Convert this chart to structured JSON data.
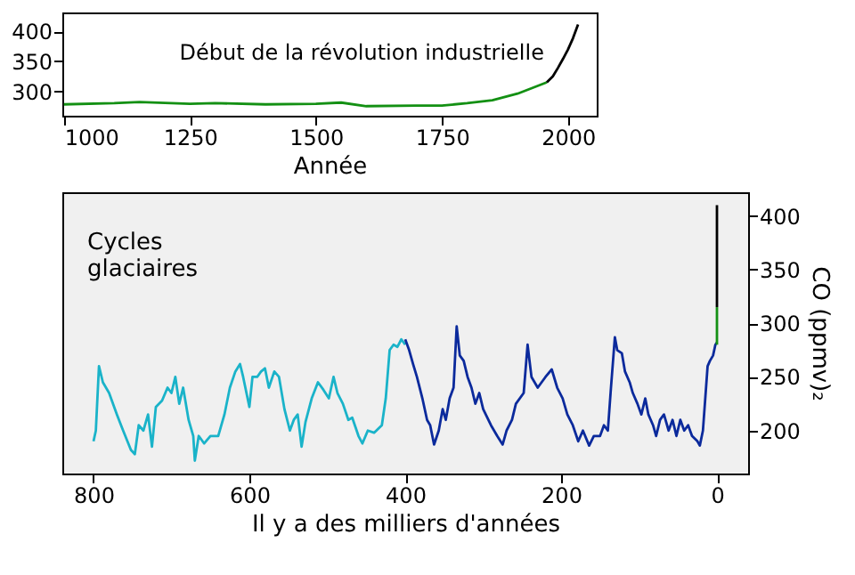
{
  "chart_data": [
    {
      "type": "line",
      "xlabel": "Année",
      "xlim": [
        997,
        2057
      ],
      "ylim": [
        259,
        432
      ],
      "xticks": [
        1000,
        1250,
        1500,
        1750,
        2000
      ],
      "yticks": [
        300,
        350,
        400
      ],
      "grid": false,
      "line_style": "solid",
      "marker": "none",
      "annotations": [
        {
          "text": "Début de la révolution industrielle",
          "x": 1750,
          "y": 276
        }
      ],
      "series": [
        {
          "color": "#139013",
          "x": [
            1000,
            1100,
            1150,
            1250,
            1300,
            1400,
            1500,
            1550,
            1600,
            1700,
            1750,
            1800,
            1850,
            1900,
            1958
          ],
          "values": [
            278,
            280,
            282,
            279,
            280,
            278,
            279,
            281,
            275,
            276,
            276,
            280,
            285,
            296,
            315
          ]
        },
        {
          "color": "#000000",
          "x": [
            1958,
            1970,
            1980,
            1990,
            2000,
            2010,
            2020
          ],
          "values": [
            315,
            325,
            339,
            354,
            370,
            389,
            412
          ]
        }
      ]
    },
    {
      "type": "line",
      "xlabel": "Il y a des milliers d'années",
      "ylabel": "CO (ppmv)₂",
      "xlim": [
        840,
        -40
      ],
      "ylim": [
        160,
        422
      ],
      "xticks": [
        800,
        600,
        400,
        200,
        0
      ],
      "yticks": [
        200,
        250,
        300,
        350,
        400
      ],
      "grid": false,
      "line_style": "solid",
      "marker": "none",
      "annotations": [
        "Cycles\nglaciaires"
      ],
      "series": [
        {
          "color": "#1ab3c9",
          "x": [
            800,
            797,
            793,
            788,
            780,
            770,
            762,
            752,
            747,
            742,
            736,
            730,
            725,
            720,
            712,
            705,
            700,
            695,
            690,
            685,
            678,
            672,
            670,
            665,
            658,
            650,
            640,
            632,
            625,
            618,
            612,
            608,
            600,
            596,
            590,
            585,
            580,
            575,
            568,
            562,
            555,
            548,
            543,
            538,
            533,
            528,
            520,
            512,
            505,
            498,
            492,
            487,
            480,
            473,
            468,
            460,
            455,
            448,
            440,
            430,
            425,
            420,
            415,
            410,
            405,
            400
          ],
          "values": [
            190,
            200,
            260,
            245,
            235,
            215,
            200,
            182,
            178,
            205,
            200,
            215,
            185,
            222,
            228,
            240,
            235,
            250,
            225,
            240,
            210,
            195,
            172,
            195,
            188,
            195,
            195,
            215,
            240,
            255,
            262,
            250,
            222,
            250,
            250,
            255,
            258,
            240,
            255,
            250,
            220,
            200,
            210,
            215,
            185,
            208,
            230,
            245,
            238,
            230,
            250,
            235,
            225,
            210,
            212,
            195,
            188,
            200,
            198,
            205,
            230,
            275,
            280,
            278,
            285,
            280
          ]
        },
        {
          "color": "#0b2a9c",
          "x": [
            400,
            395,
            390,
            385,
            378,
            372,
            368,
            363,
            357,
            352,
            348,
            343,
            338,
            334,
            330,
            325,
            320,
            315,
            310,
            305,
            300,
            290,
            282,
            275,
            270,
            263,
            258,
            248,
            243,
            238,
            230,
            220,
            212,
            205,
            198,
            192,
            185,
            178,
            172,
            164,
            158,
            150,
            145,
            140,
            136,
            131,
            128,
            122,
            118,
            112,
            108,
            102,
            97,
            92,
            88,
            82,
            78,
            73,
            68,
            62,
            57,
            52,
            47,
            42,
            37,
            32,
            25,
            22,
            18,
            15,
            12,
            9,
            5,
            2,
            0
          ],
          "values": [
            285,
            275,
            262,
            250,
            230,
            210,
            205,
            187,
            200,
            220,
            210,
            230,
            240,
            297,
            270,
            265,
            250,
            240,
            225,
            235,
            220,
            205,
            195,
            187,
            200,
            210,
            225,
            235,
            280,
            250,
            240,
            250,
            257,
            240,
            230,
            215,
            205,
            190,
            200,
            186,
            195,
            195,
            205,
            200,
            240,
            287,
            275,
            272,
            255,
            245,
            235,
            225,
            215,
            230,
            215,
            205,
            195,
            210,
            215,
            200,
            210,
            195,
            210,
            200,
            205,
            195,
            190,
            186,
            200,
            230,
            260,
            265,
            270,
            280,
            282
          ]
        },
        {
          "color": "#139013",
          "x": [
            0,
            0
          ],
          "values": [
            280,
            315
          ]
        },
        {
          "color": "#000000",
          "x": [
            0,
            0
          ],
          "values": [
            315,
            410
          ]
        }
      ]
    }
  ]
}
